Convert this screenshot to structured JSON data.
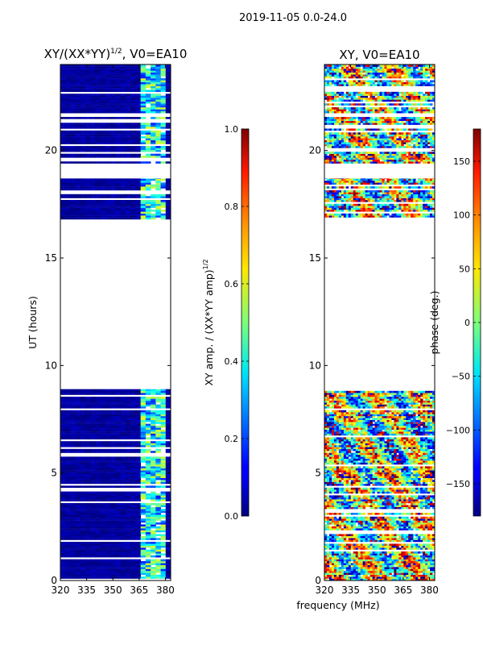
{
  "chart_data": {
    "type": "heatmap",
    "suptitle": "2019-11-05 0.0-24.0",
    "shared_xlabel": "frequency (MHz)",
    "panels": [
      {
        "title": "XY/(XX*YY)",
        "title_suffix": ", V0=EA10",
        "title_exponent": "1/2",
        "ylabel": "UT (hours)",
        "xlim": [
          320,
          383
        ],
        "ylim": [
          0,
          24
        ],
        "xticks": [
          320,
          335,
          350,
          365,
          380
        ],
        "yticks": [
          0,
          5,
          10,
          15,
          20
        ],
        "colormap": "jet",
        "colorbar": {
          "label": "XY amp. / (XX*YY amp)",
          "label_exponent": "1/2",
          "range": [
            0.0,
            1.0
          ],
          "ticks": [
            "0.0",
            "0.2",
            "0.4",
            "0.6",
            "0.8",
            "1.0"
          ]
        }
      },
      {
        "title": "XY, V0=EA10",
        "title_suffix": "",
        "title_exponent": "",
        "ylabel": "",
        "xlim": [
          320,
          383
        ],
        "ylim": [
          0,
          24
        ],
        "xticks": [
          320,
          335,
          350,
          365,
          380
        ],
        "yticks": [
          0,
          5,
          10,
          15,
          20
        ],
        "colormap": "jet",
        "colorbar": {
          "label": "phase (deg.)",
          "label_exponent": "",
          "range": [
            -180,
            180
          ],
          "ticks": [
            "−150",
            "−100",
            "−50",
            "0",
            "50",
            "100",
            "150"
          ]
        }
      }
    ],
    "data_segments_ut": [
      [
        0.0,
        8.9
      ],
      [
        16.8,
        18.7
      ],
      [
        19.4,
        24.0
      ]
    ],
    "bright_band_mhz": [
      363,
      380
    ]
  }
}
